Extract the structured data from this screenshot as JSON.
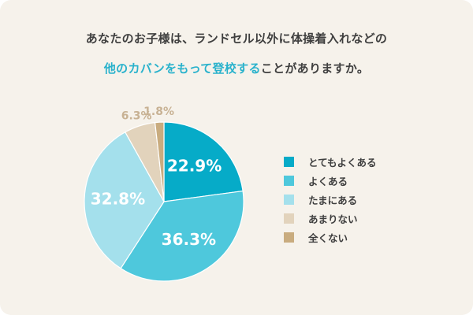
{
  "question": {
    "line1": "あなたのお子様は、ランドセル以外に体操着入れなどの",
    "line2_highlight": "他のカバンをもって登校する",
    "line2_rest": "ことがありますか。"
  },
  "chart_data": {
    "type": "pie",
    "unit": "%",
    "start_angle_deg": 0,
    "direction": "clockwise",
    "legend_position": "right",
    "slices": [
      {
        "label": "とてもよくある",
        "value": 22.9,
        "value_text": "22.9%",
        "color": "#06abc8",
        "label_color": "#ffffff"
      },
      {
        "label": "よくある",
        "value": 36.3,
        "value_text": "36.3%",
        "color": "#4ec8dc",
        "label_color": "#ffffff"
      },
      {
        "label": "たまにある",
        "value": 32.8,
        "value_text": "32.8%",
        "color": "#a4e0ec",
        "label_color": "#ffffff"
      },
      {
        "label": "あまりない",
        "value": 6.3,
        "value_text": "6.3%",
        "color": "#e2d3bc",
        "label_color": "#c8b294"
      },
      {
        "label": "全くない",
        "value": 1.8,
        "value_text": "1.8%",
        "color": "#c9ac7f",
        "label_color": "#c8b294"
      }
    ]
  }
}
